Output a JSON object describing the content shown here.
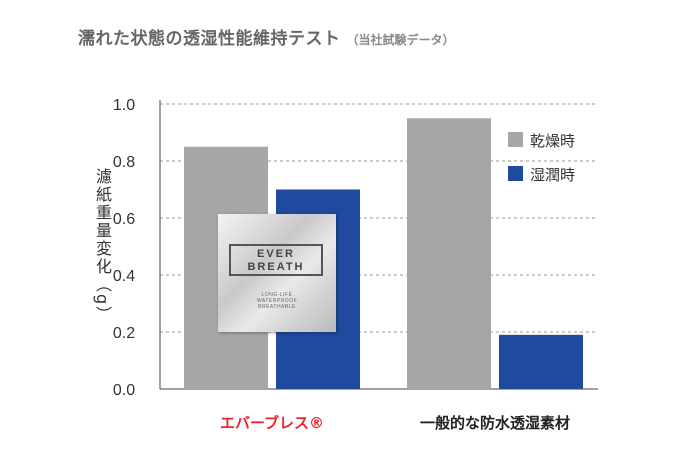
{
  "title": {
    "main": "濡れた状態の透湿性能維持テスト",
    "sub": "（当社試験データ）"
  },
  "logo": {
    "line1": "EVER",
    "line2": "BREATH",
    "tagline": [
      "LONG-LIFE",
      "WATERPROOF",
      "BREATHABLE"
    ]
  },
  "chart_data": {
    "type": "bar",
    "title": "濡れた状態の透湿性能維持テスト",
    "subtitle": "（当社試験データ）",
    "ylabel": "濾紙重量変化（g）",
    "xlabel": "",
    "categories": [
      "エバーブレス®",
      "一般的な防水透湿素材"
    ],
    "series": [
      {
        "name": "乾燥時",
        "color": "#a6a6a6",
        "values": [
          0.85,
          0.95
        ]
      },
      {
        "name": "湿潤時",
        "color": "#1f4aa0",
        "values": [
          0.7,
          0.19
        ]
      }
    ],
    "ylim": [
      0,
      1.0
    ],
    "yticks": [
      "0.0",
      "0.2",
      "0.4",
      "0.6",
      "0.8",
      "1.0"
    ],
    "grid": true,
    "legend": "top-right",
    "category_colors": [
      "#e8272a",
      "#222222"
    ]
  }
}
